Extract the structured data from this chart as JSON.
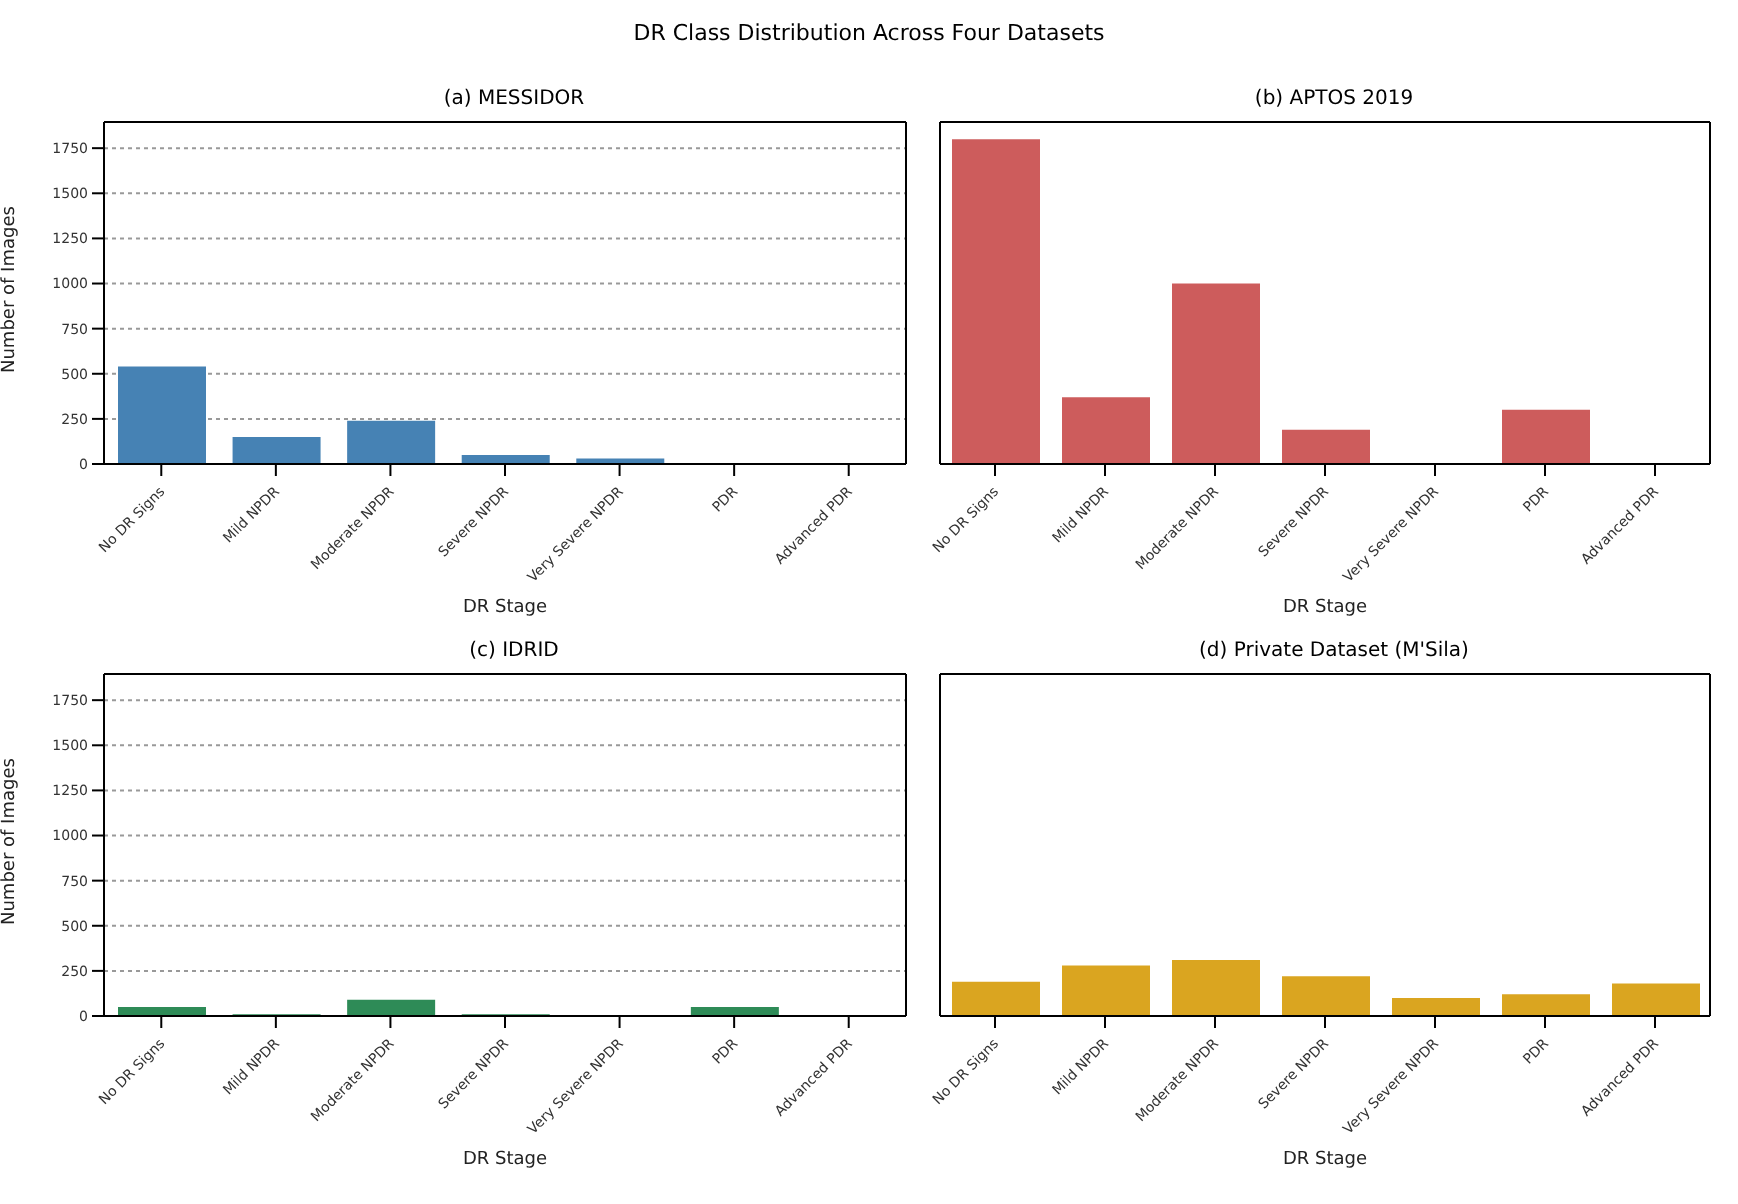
{
  "chart_data": [
    {
      "type": "bar",
      "title": "(a) MESSIDOR",
      "annotations": [
        "DR Class Distribution Across Four Datasets"
      ],
      "categories": [
        "No DR Signs",
        "Mild NPDR",
        "Moderate NPDR",
        "Severe NPDR",
        "Very Severe NPDR",
        "PDR",
        "Advanced PDR"
      ],
      "values": [
        540,
        150,
        240,
        50,
        30,
        0,
        0
      ],
      "color": "#4682b4",
      "xlabel": "DR Stage",
      "ylabel": "Number of Images",
      "ylim": [
        0,
        1895
      ],
      "yticks": [
        0,
        250,
        500,
        750,
        1000,
        1250,
        1500,
        1750
      ],
      "grid": "y"
    },
    {
      "type": "bar",
      "title": "(b) APTOS 2019",
      "categories": [
        "No DR Signs",
        "Mild NPDR",
        "Moderate NPDR",
        "Severe NPDR",
        "Very Severe NPDR",
        "PDR",
        "Advanced PDR"
      ],
      "values": [
        1800,
        370,
        1000,
        190,
        0,
        300,
        0
      ],
      "color": "#cd5c5c",
      "xlabel": "DR Stage",
      "ylim": [
        0,
        1895
      ],
      "yticks": [
        0,
        250,
        500,
        750,
        1000,
        1250,
        1500,
        1750
      ],
      "grid": "y",
      "tick_labels": "x"
    },
    {
      "type": "bar",
      "title": "(c) IDRID",
      "categories": [
        "No DR Signs",
        "Mild NPDR",
        "Moderate NPDR",
        "Severe NPDR",
        "Very Severe NPDR",
        "PDR",
        "Advanced PDR"
      ],
      "values": [
        50,
        10,
        90,
        10,
        0,
        50,
        0
      ],
      "color": "#2e8b57",
      "xlabel": "DR Stage",
      "ylabel": "Number of Images",
      "ylim": [
        0,
        1895
      ],
      "yticks": [
        0,
        250,
        500,
        750,
        1000,
        1250,
        1500,
        1750
      ],
      "grid": "y"
    },
    {
      "type": "bar",
      "title": "(d) Private Dataset (M'Sila)",
      "categories": [
        "No DR Signs",
        "Mild NPDR",
        "Moderate NPDR",
        "Severe NPDR",
        "Very Severe NPDR",
        "PDR",
        "Advanced PDR"
      ],
      "values": [
        190,
        280,
        310,
        220,
        100,
        120,
        180
      ],
      "color": "#daa520",
      "xlabel": "DR Stage",
      "ylim": [
        0,
        1895
      ],
      "yticks": [
        0,
        250,
        500,
        750,
        1000,
        1250,
        1500,
        1750
      ],
      "grid": "y",
      "tick_labels": "x"
    }
  ]
}
